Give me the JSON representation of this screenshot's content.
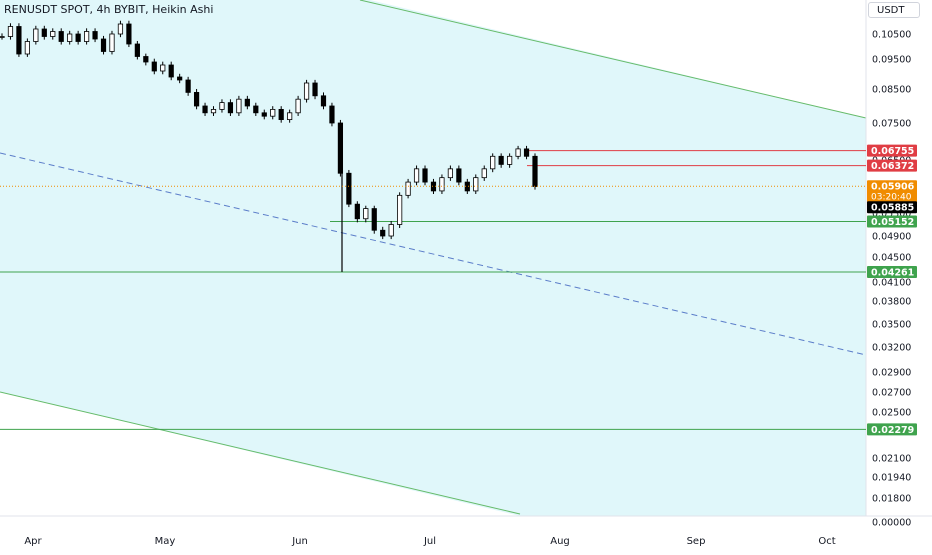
{
  "header": {
    "title": "RENUSDT SPOT, 4h BYBIT, Heikin Ashi"
  },
  "currency": "USDT",
  "chart_data": {
    "type": "candlestick",
    "symbol": "RENUSDT",
    "exchange": "BYBIT",
    "interval": "4h",
    "style": "Heikin Ashi",
    "x_labels": [
      "Apr",
      "May",
      "Jun",
      "Jul",
      "Aug",
      "Sep",
      "Oct"
    ],
    "y_ticks": [
      "0.10500",
      "0.09500",
      "0.08500",
      "0.07500",
      "0.06500",
      "0.05300",
      "0.04900",
      "0.04500",
      "0.04100",
      "0.03800",
      "0.03500",
      "0.03200",
      "0.02900",
      "0.02700",
      "0.02500",
      "0.02100",
      "0.01940",
      "0.01800",
      "0.00000"
    ],
    "price_series": [
      0.104,
      0.108,
      0.097,
      0.102,
      0.107,
      0.104,
      0.106,
      0.102,
      0.105,
      0.102,
      0.106,
      0.103,
      0.098,
      0.105,
      0.109,
      0.101,
      0.096,
      0.094,
      0.091,
      0.093,
      0.089,
      0.088,
      0.084,
      0.08,
      0.078,
      0.079,
      0.081,
      0.078,
      0.082,
      0.08,
      0.078,
      0.077,
      0.079,
      0.076,
      0.078,
      0.082,
      0.087,
      0.083,
      0.08,
      0.075,
      0.062,
      0.055,
      0.052,
      0.054,
      0.05,
      0.049,
      0.051,
      0.057,
      0.06,
      0.063,
      0.06,
      0.058,
      0.061,
      0.063,
      0.06,
      0.058,
      0.061,
      0.063,
      0.066,
      0.064,
      0.066,
      0.068,
      0.066,
      0.059
    ],
    "levels": [
      {
        "value": "0.06755",
        "color": "#e03d44"
      },
      {
        "value": "0.06372",
        "color": "#e03d44"
      },
      {
        "value": "0.05152",
        "color": "#3fa34d"
      },
      {
        "value": "0.04261",
        "color": "#3fa34d"
      },
      {
        "value": "0.02279",
        "color": "#3fa34d"
      }
    ],
    "current_price": {
      "value": "0.05906",
      "countdown": "03:20:40",
      "color": "#f08c00"
    },
    "last_close": {
      "value": "0.05885",
      "color": "#000000"
    },
    "channel": {
      "fill": "#e0f7fa",
      "border_color": "#66bb6a",
      "midline_color": "#5b7dc9"
    }
  }
}
